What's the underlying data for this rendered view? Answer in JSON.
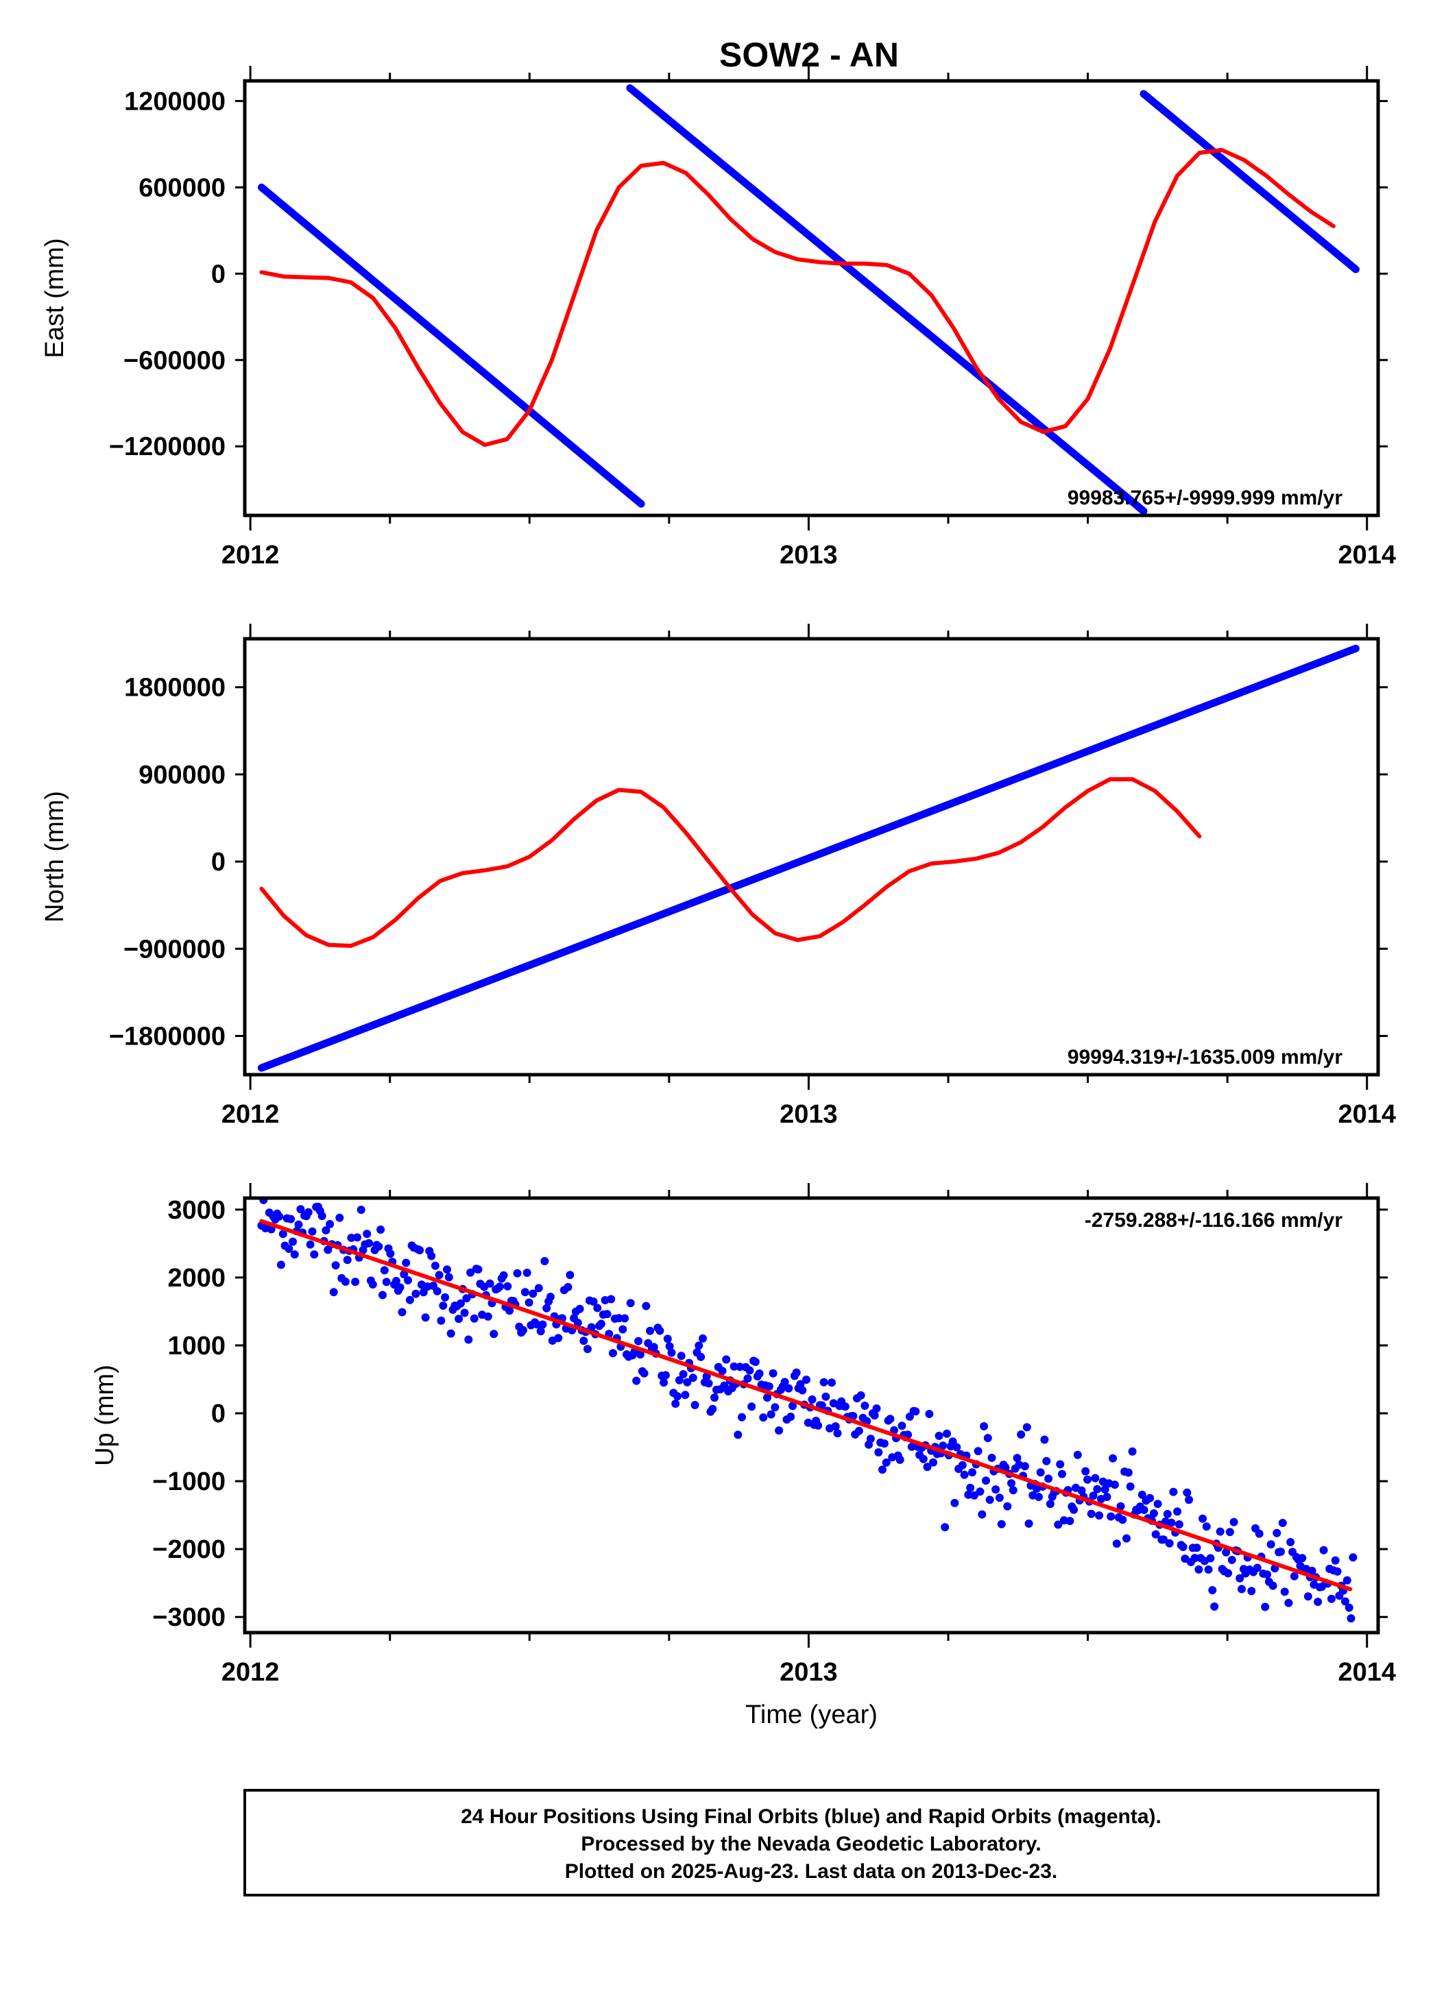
{
  "title": "SOW2 - AN",
  "colors": {
    "final": "#0000ff",
    "model": "#ff0000",
    "frame": "#000000"
  },
  "chart_data": [
    {
      "type": "line",
      "ylabel": "East (mm)",
      "ylim": [
        -1680000,
        1340000
      ],
      "yticks": [
        1200000,
        600000,
        0,
        -600000,
        -1200000
      ],
      "ytick_labels": [
        "1200000",
        "600000",
        "0",
        "−600000",
        "−1200000"
      ],
      "xlim": [
        2011.99,
        2014.02
      ],
      "xticks": [
        2012,
        2013,
        2014
      ],
      "xtick_labels": [
        "2012",
        "2013",
        "2014"
      ],
      "rate_label": "99983.765+/-9999.999 mm/yr",
      "rate_position": "bottom-right",
      "series": [
        {
          "role": "final",
          "segments": [
            [
              [
                2012.02,
                600000
              ],
              [
                2012.7,
                -1600000
              ]
            ],
            [
              [
                2012.68,
                1290000
              ],
              [
                2013.6,
                -1650000
              ]
            ],
            [
              [
                2013.6,
                1250000
              ],
              [
                2013.98,
                30000
              ]
            ]
          ]
        },
        {
          "role": "model",
          "points": [
            [
              2012.02,
              10000
            ],
            [
              2012.06,
              -20000
            ],
            [
              2012.1,
              -25000
            ],
            [
              2012.14,
              -30000
            ],
            [
              2012.18,
              -60000
            ],
            [
              2012.22,
              -170000
            ],
            [
              2012.26,
              -380000
            ],
            [
              2012.3,
              -650000
            ],
            [
              2012.34,
              -900000
            ],
            [
              2012.38,
              -1100000
            ],
            [
              2012.42,
              -1190000
            ],
            [
              2012.46,
              -1150000
            ],
            [
              2012.5,
              -950000
            ],
            [
              2012.54,
              -600000
            ],
            [
              2012.58,
              -150000
            ],
            [
              2012.62,
              300000
            ],
            [
              2012.66,
              600000
            ],
            [
              2012.7,
              750000
            ],
            [
              2012.74,
              770000
            ],
            [
              2012.78,
              700000
            ],
            [
              2012.82,
              550000
            ],
            [
              2012.86,
              380000
            ],
            [
              2012.9,
              240000
            ],
            [
              2012.94,
              150000
            ],
            [
              2012.98,
              100000
            ],
            [
              2013.02,
              80000
            ],
            [
              2013.06,
              70000
            ],
            [
              2013.1,
              70000
            ],
            [
              2013.14,
              60000
            ],
            [
              2013.18,
              0
            ],
            [
              2013.22,
              -150000
            ],
            [
              2013.26,
              -380000
            ],
            [
              2013.3,
              -650000
            ],
            [
              2013.34,
              -870000
            ],
            [
              2013.38,
              -1030000
            ],
            [
              2013.42,
              -1100000
            ],
            [
              2013.46,
              -1060000
            ],
            [
              2013.5,
              -870000
            ],
            [
              2013.54,
              -520000
            ],
            [
              2013.58,
              -80000
            ],
            [
              2013.62,
              360000
            ],
            [
              2013.66,
              680000
            ],
            [
              2013.7,
              840000
            ],
            [
              2013.74,
              860000
            ],
            [
              2013.78,
              790000
            ],
            [
              2013.82,
              680000
            ],
            [
              2013.86,
              550000
            ],
            [
              2013.9,
              430000
            ],
            [
              2013.94,
              330000
            ]
          ]
        }
      ]
    },
    {
      "type": "line",
      "ylabel": "North (mm)",
      "ylim": [
        -2200000,
        2300000
      ],
      "yticks": [
        1800000,
        900000,
        0,
        -900000,
        -1800000
      ],
      "ytick_labels": [
        "1800000",
        "900000",
        "0",
        "−900000",
        "−1800000"
      ],
      "xlim": [
        2011.99,
        2014.02
      ],
      "xticks": [
        2012,
        2013,
        2014
      ],
      "xtick_labels": [
        "2012",
        "2013",
        "2014"
      ],
      "rate_label": "99994.319+/-1635.009 mm/yr",
      "rate_position": "bottom-right",
      "series": [
        {
          "role": "final",
          "segments": [
            [
              [
                2012.02,
                -2130000
              ],
              [
                2013.98,
                2200000
              ]
            ]
          ]
        },
        {
          "role": "model",
          "points": [
            [
              2012.02,
              -280000
            ],
            [
              2012.06,
              -560000
            ],
            [
              2012.1,
              -760000
            ],
            [
              2012.14,
              -860000
            ],
            [
              2012.18,
              -870000
            ],
            [
              2012.22,
              -780000
            ],
            [
              2012.26,
              -600000
            ],
            [
              2012.3,
              -380000
            ],
            [
              2012.34,
              -200000
            ],
            [
              2012.38,
              -120000
            ],
            [
              2012.42,
              -90000
            ],
            [
              2012.46,
              -50000
            ],
            [
              2012.5,
              50000
            ],
            [
              2012.54,
              220000
            ],
            [
              2012.58,
              440000
            ],
            [
              2012.62,
              630000
            ],
            [
              2012.66,
              740000
            ],
            [
              2012.7,
              720000
            ],
            [
              2012.74,
              560000
            ],
            [
              2012.78,
              300000
            ],
            [
              2012.82,
              10000
            ],
            [
              2012.86,
              -280000
            ],
            [
              2012.9,
              -550000
            ],
            [
              2012.94,
              -740000
            ],
            [
              2012.98,
              -810000
            ],
            [
              2013.02,
              -770000
            ],
            [
              2013.06,
              -630000
            ],
            [
              2013.1,
              -450000
            ],
            [
              2013.14,
              -260000
            ],
            [
              2013.18,
              -100000
            ],
            [
              2013.22,
              -20000
            ],
            [
              2013.26,
              0
            ],
            [
              2013.3,
              30000
            ],
            [
              2013.34,
              90000
            ],
            [
              2013.38,
              200000
            ],
            [
              2013.42,
              360000
            ],
            [
              2013.46,
              560000
            ],
            [
              2013.5,
              730000
            ],
            [
              2013.54,
              850000
            ],
            [
              2013.58,
              850000
            ],
            [
              2013.62,
              730000
            ],
            [
              2013.66,
              520000
            ],
            [
              2013.7,
              260000
            ]
          ]
        }
      ]
    },
    {
      "type": "scatter",
      "ylabel": "Up (mm)",
      "xlabel": "Time (year)",
      "ylim": [
        -3230,
        3170
      ],
      "yticks": [
        3000,
        2000,
        1000,
        0,
        -1000,
        -2000,
        -3000
      ],
      "ytick_labels": [
        "3000",
        "2000",
        "1000",
        "0",
        "−1000",
        "−2000",
        "−3000"
      ],
      "xlim": [
        2011.99,
        2014.02
      ],
      "xticks": [
        2012,
        2013,
        2014
      ],
      "xtick_labels": [
        "2012",
        "2013",
        "2014"
      ],
      "rate_label": "-2759.288+/-116.166 mm/yr",
      "rate_position": "top-right",
      "trend": [
        [
          2012.02,
          2830
        ],
        [
          2013.97,
          -2590
        ]
      ],
      "daily_points": {
        "start_year": 2012.02,
        "end_year": 2013.975,
        "count": 560,
        "start_value": 2830,
        "end_value": -2590,
        "scatter_mm": 300
      }
    }
  ],
  "footer": {
    "line1": "24 Hour Positions Using Final Orbits (blue) and Rapid Orbits (magenta).",
    "line2": "Processed by the Nevada Geodetic Laboratory.",
    "line3": "Plotted on 2025-Aug-23. Last data on 2013-Dec-23."
  }
}
